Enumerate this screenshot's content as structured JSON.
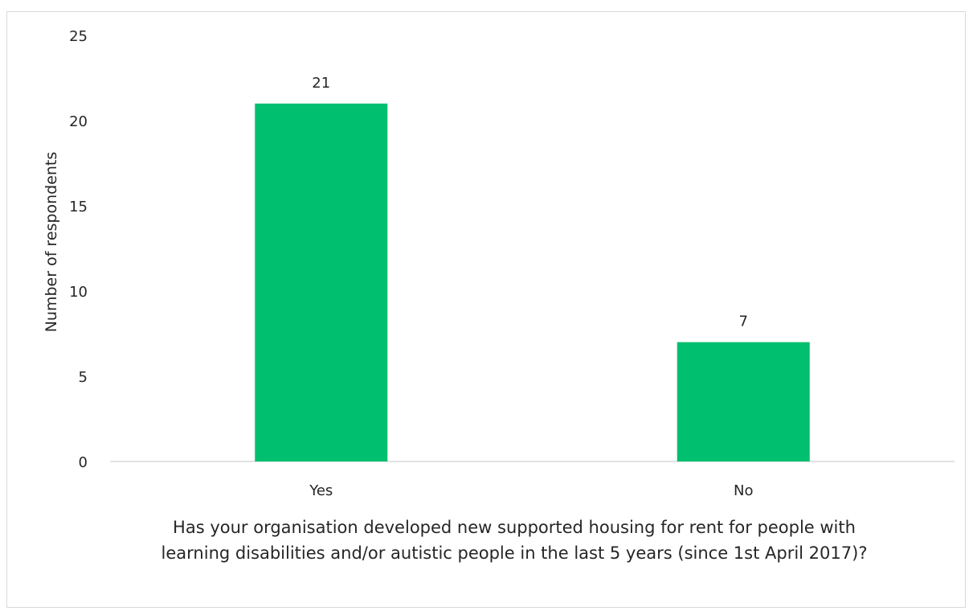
{
  "chart_data": {
    "type": "bar",
    "categories": [
      "Yes",
      "No"
    ],
    "values": [
      21,
      7
    ],
    "data_labels": [
      "21",
      "7"
    ],
    "title": "",
    "xlabel": "Has your organisation developed new supported housing for rent for people with learning disabilities and/or autistic people in the last 5 years (since 1st April 2017)?",
    "ylabel": "Number of respondents",
    "ylim": [
      0,
      25
    ],
    "yticks": [
      0,
      5,
      10,
      15,
      20,
      25
    ],
    "grid": false,
    "legend": "none",
    "bar_color": "#00bf6f"
  }
}
